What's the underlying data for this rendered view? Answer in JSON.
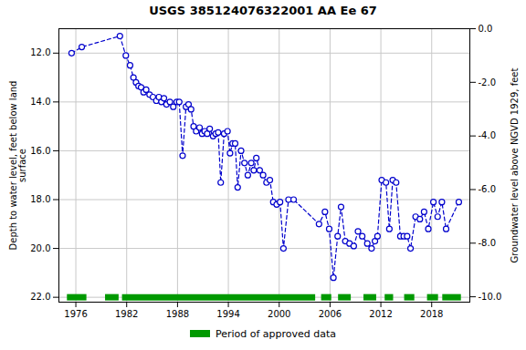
{
  "chart_data": {
    "type": "line",
    "title": "USGS 385124076322001 AA Ee  67",
    "ylabel": "Depth to water level, feet below land\nsurface",
    "y2label": "Groundwater level above NGVD 1929, feet",
    "xlim": [
      1974.0,
      2022.5
    ],
    "xticks": [
      1976,
      1982,
      1988,
      1994,
      2000,
      2006,
      2012,
      2018
    ],
    "ylim": [
      22.2,
      11.0
    ],
    "yticks": [
      {
        "value": 12.0,
        "label": "12.0"
      },
      {
        "value": 14.0,
        "label": "14.0"
      },
      {
        "value": 16.0,
        "label": "16.0"
      },
      {
        "value": 18.0,
        "label": "18.0"
      },
      {
        "value": 20.0,
        "label": "20.0"
      },
      {
        "value": 22.0,
        "label": "22.0"
      }
    ],
    "y2lim": [
      -10.2,
      0.0
    ],
    "y2ticks": [
      {
        "value": 0.0,
        "label": "0.0"
      },
      {
        "value": -2.0,
        "label": "-2.0"
      },
      {
        "value": -4.0,
        "label": "-4.0"
      },
      {
        "value": -6.0,
        "label": "-6.0"
      },
      {
        "value": -8.0,
        "label": "-8.0"
      },
      {
        "value": -10.0,
        "label": "-10.0"
      }
    ],
    "grid": true,
    "legend": "bottom",
    "x": [
      1975.5,
      1976.7,
      1981.2,
      1981.9,
      1982.4,
      1982.8,
      1983.1,
      1983.4,
      1983.7,
      1984.0,
      1984.3,
      1984.7,
      1985.1,
      1985.5,
      1985.8,
      1986.1,
      1986.4,
      1986.7,
      1987.1,
      1987.5,
      1987.9,
      1988.2,
      1988.6,
      1989.0,
      1989.3,
      1989.6,
      1989.9,
      1990.2,
      1990.6,
      1990.9,
      1991.2,
      1991.5,
      1991.8,
      1992.2,
      1992.5,
      1992.8,
      1993.1,
      1993.5,
      1993.9,
      1994.2,
      1994.5,
      1994.8,
      1995.1,
      1995.5,
      1995.9,
      1996.3,
      1996.7,
      1997.0,
      1997.3,
      1997.7,
      1998.1,
      1998.5,
      1998.9,
      1999.3,
      1999.7,
      2000.1,
      2000.5,
      2001.1,
      2001.7,
      2004.7,
      2005.4,
      2005.9,
      2006.4,
      2006.9,
      2007.3,
      2007.8,
      2008.3,
      2008.8,
      2009.3,
      2009.8,
      2010.4,
      2010.9,
      2011.3,
      2011.6,
      2012.1,
      2012.6,
      2013.0,
      2013.4,
      2013.8,
      2014.3,
      2014.7,
      2015.1,
      2015.5,
      2016.1,
      2016.6,
      2017.1,
      2017.6,
      2018.2,
      2018.7,
      2019.2,
      2019.7,
      2021.2
    ],
    "series": [
      {
        "type": "line",
        "color": "#0000cc",
        "line_style": "dashed",
        "marker": "circle",
        "values": [
          12.0,
          11.75,
          11.3,
          12.1,
          12.5,
          13.0,
          13.2,
          13.35,
          13.4,
          13.6,
          13.5,
          13.7,
          13.8,
          13.95,
          13.8,
          14.0,
          13.85,
          14.1,
          14.0,
          14.2,
          14.0,
          14.0,
          16.2,
          14.2,
          14.1,
          14.3,
          15.0,
          15.2,
          15.05,
          15.3,
          15.2,
          15.3,
          15.1,
          15.4,
          15.3,
          15.25,
          17.3,
          15.3,
          15.2,
          16.1,
          15.7,
          15.7,
          17.5,
          16.0,
          16.5,
          17.0,
          16.5,
          16.8,
          16.3,
          16.8,
          17.0,
          17.3,
          17.2,
          18.1,
          18.2,
          18.1,
          20.0,
          18.0,
          18.0,
          19.0,
          18.5,
          19.2,
          21.2,
          19.5,
          18.3,
          19.7,
          19.8,
          19.9,
          19.3,
          19.5,
          19.8,
          20.0,
          19.7,
          19.5,
          17.2,
          17.3,
          19.2,
          17.2,
          17.3,
          19.5,
          19.5,
          19.5,
          20.0,
          18.7,
          18.8,
          18.5,
          19.2,
          18.1,
          18.7,
          18.1,
          19.2,
          18.1
        ]
      },
      {
        "type": "bar",
        "orientation": "horizontal",
        "name": "Period of approved data",
        "color": "#009900",
        "y": 22.0,
        "segments": [
          [
            1975.0,
            1977.3
          ],
          [
            1979.5,
            1981.1
          ],
          [
            1981.5,
            2004.3
          ],
          [
            2005.0,
            2006.2
          ],
          [
            2007.0,
            2008.5
          ],
          [
            2010.0,
            2011.5
          ],
          [
            2012.5,
            2013.5
          ],
          [
            2014.8,
            2016.0
          ],
          [
            2017.5,
            2018.8
          ],
          [
            2019.3,
            2021.5
          ]
        ]
      }
    ]
  }
}
